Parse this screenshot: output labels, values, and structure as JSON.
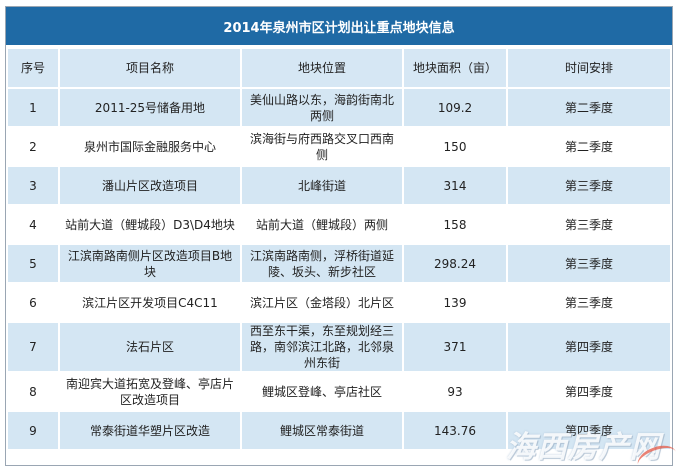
{
  "title": "2014年泉州市区计划出让重点地块信息",
  "headers": {
    "no": "序号",
    "name": "项目名称",
    "location": "地块位置",
    "area": "地块面积（亩）",
    "schedule": "时间安排"
  },
  "rows": [
    {
      "no": "1",
      "name": "2011-25号储备用地",
      "location": "美仙山路以东，海韵街南北两侧",
      "area": "109.2",
      "schedule": "第二季度"
    },
    {
      "no": "2",
      "name": "泉州市国际金融服务中心",
      "location": "滨海街与府西路交叉口西南侧",
      "area": "150",
      "schedule": "第二季度"
    },
    {
      "no": "3",
      "name": "潘山片区改造项目",
      "location": "北峰街道",
      "area": "314",
      "schedule": "第三季度"
    },
    {
      "no": "4",
      "name": "站前大道（鲤城段）D3\\D4地块",
      "location": "站前大道（鲤城段）两侧",
      "area": "158",
      "schedule": "第三季度"
    },
    {
      "no": "5",
      "name": "江滨南路南侧片区改造项目B地块",
      "location": "江滨南路南侧，浮桥街道延陵、坂头、新步社区",
      "area": "298.24",
      "schedule": "第三季度"
    },
    {
      "no": "6",
      "name": "滨江片区开发项目C4C11",
      "location": "滨江片区（金塔段）北片区",
      "area": "139",
      "schedule": "第三季度"
    },
    {
      "no": "7",
      "name": "法石片区",
      "location": "西至东干渠，东至规划经三路，南邻滨江北路，北邻泉州东街",
      "area": "371",
      "schedule": "第四季度"
    },
    {
      "no": "8",
      "name": "南迎宾大道拓宽及登峰、亭店片区改造项目",
      "location": "鲤城区登峰、亭店社区",
      "area": "93",
      "schedule": "第四季度"
    },
    {
      "no": "9",
      "name": "常泰街道华塑片区改造",
      "location": "鲤城区常泰街道",
      "area": "143.76",
      "schedule": "第四季度"
    }
  ],
  "watermark": "海西房产网"
}
